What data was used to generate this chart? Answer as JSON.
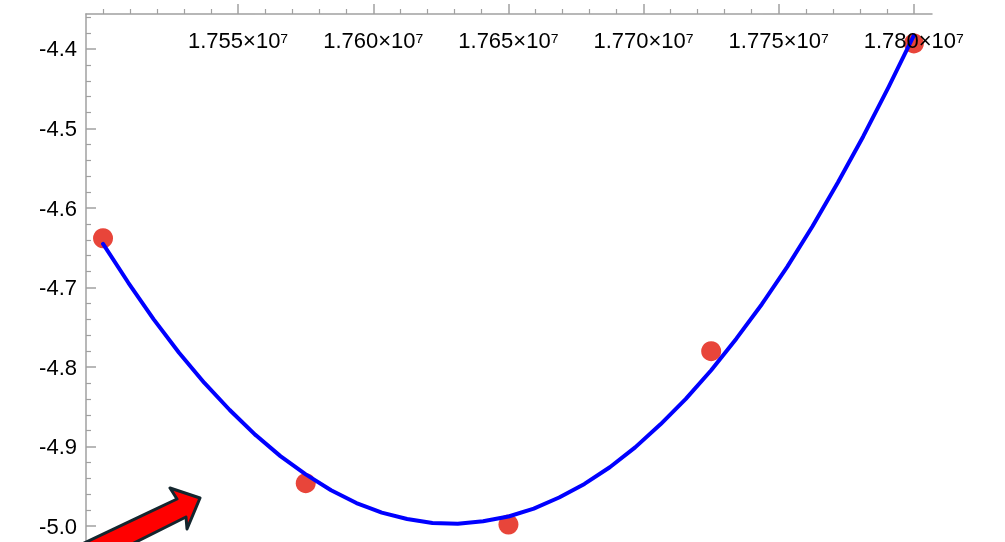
{
  "chart_data": {
    "type": "scatter",
    "xlim": [
      17493700,
      17806700
    ],
    "xticks": [
      {
        "value": 17500000,
        "label": null
      },
      {
        "value": 17510000,
        "label": null
      },
      {
        "value": 17520000,
        "label": null
      },
      {
        "value": 17530000,
        "label": null
      },
      {
        "value": 17540000,
        "label": null
      },
      {
        "value": 17550000,
        "label": "1.755×10⁷"
      },
      {
        "value": 17560000,
        "label": null
      },
      {
        "value": 17570000,
        "label": null
      },
      {
        "value": 17580000,
        "label": null
      },
      {
        "value": 17590000,
        "label": null
      },
      {
        "value": 17600000,
        "label": "1.760×10⁷"
      },
      {
        "value": 17610000,
        "label": null
      },
      {
        "value": 17620000,
        "label": null
      },
      {
        "value": 17630000,
        "label": null
      },
      {
        "value": 17640000,
        "label": null
      },
      {
        "value": 17650000,
        "label": "1.765×10⁷"
      },
      {
        "value": 17660000,
        "label": null
      },
      {
        "value": 17670000,
        "label": null
      },
      {
        "value": 17680000,
        "label": null
      },
      {
        "value": 17690000,
        "label": null
      },
      {
        "value": 17700000,
        "label": "1.770×10⁷"
      },
      {
        "value": 17710000,
        "label": null
      },
      {
        "value": 17720000,
        "label": null
      },
      {
        "value": 17730000,
        "label": null
      },
      {
        "value": 17740000,
        "label": null
      },
      {
        "value": 17750000,
        "label": "1.775×10⁷"
      },
      {
        "value": 17760000,
        "label": null
      },
      {
        "value": 17770000,
        "label": null
      },
      {
        "value": 17780000,
        "label": null
      },
      {
        "value": 17790000,
        "label": null
      },
      {
        "value": 17800000,
        "label": "1.780×10⁷"
      }
    ],
    "ylim": [
      -5.02,
      -4.356
    ],
    "yticks": [
      {
        "value": -5,
        "label": "-5.0"
      },
      {
        "value": -4.98,
        "label": null
      },
      {
        "value": -4.96,
        "label": null
      },
      {
        "value": -4.94,
        "label": null
      },
      {
        "value": -4.92,
        "label": null
      },
      -4.9,
      {
        "value": -4.88,
        "label": null
      },
      {
        "value": -4.86,
        "label": null
      },
      {
        "value": -4.84,
        "label": null
      },
      {
        "value": -4.82,
        "label": null
      },
      -4.8,
      {
        "value": -4.78,
        "label": null
      },
      {
        "value": -4.76,
        "label": null
      },
      {
        "value": -4.74,
        "label": null
      },
      {
        "value": -4.72,
        "label": null
      },
      -4.7,
      {
        "value": -4.68,
        "label": null
      },
      {
        "value": -4.66,
        "label": null
      },
      {
        "value": -4.64,
        "label": null
      },
      {
        "value": -4.62,
        "label": null
      },
      -4.6,
      {
        "value": -4.58,
        "label": null
      },
      {
        "value": -4.56,
        "label": null
      },
      {
        "value": -4.54,
        "label": null
      },
      {
        "value": -4.52,
        "label": null
      },
      -4.5,
      {
        "value": -4.48,
        "label": null
      },
      {
        "value": -4.46,
        "label": null
      },
      {
        "value": -4.44,
        "label": null
      },
      {
        "value": -4.42,
        "label": null
      },
      -4.4,
      {
        "value": -4.38,
        "label": null
      },
      {
        "value": -4.36,
        "label": null
      }
    ],
    "marker": "circle",
    "grid": false,
    "series": [
      {
        "color": "#e8453a",
        "x": [
          17500000,
          17575000,
          17650000,
          17725000,
          17800000
        ],
        "values": [
          -4.638,
          -4.946,
          -4.998,
          -4.78,
          -4.393
        ]
      },
      {
        "type": "line",
        "color": "#0000ff",
        "marker": "none",
        "x": [
          17500000,
          17509375,
          17518750,
          17528125,
          17537500,
          17546875,
          17556250,
          17565625,
          17575000,
          17584375,
          17593750,
          17603125,
          17612500,
          17621875,
          17631250,
          17640625,
          17650000,
          17659375,
          17668750,
          17678125,
          17687500,
          17696875,
          17706250,
          17715625,
          17725000,
          17734375,
          17743750,
          17753125,
          17762500,
          17771875,
          17781250,
          17790625,
          17800000
        ],
        "values": [
          -4.645,
          -4.694,
          -4.74,
          -4.782,
          -4.82,
          -4.854,
          -4.885,
          -4.912,
          -4.935,
          -4.955,
          -4.971,
          -4.983,
          -4.991,
          -4.996,
          -4.997,
          -4.994,
          -4.988,
          -4.978,
          -4.964,
          -4.947,
          -4.926,
          -4.901,
          -4.872,
          -4.84,
          -4.804,
          -4.764,
          -4.721,
          -4.674,
          -4.623,
          -4.568,
          -4.51,
          -4.448,
          -4.383
        ]
      }
    ]
  }
}
